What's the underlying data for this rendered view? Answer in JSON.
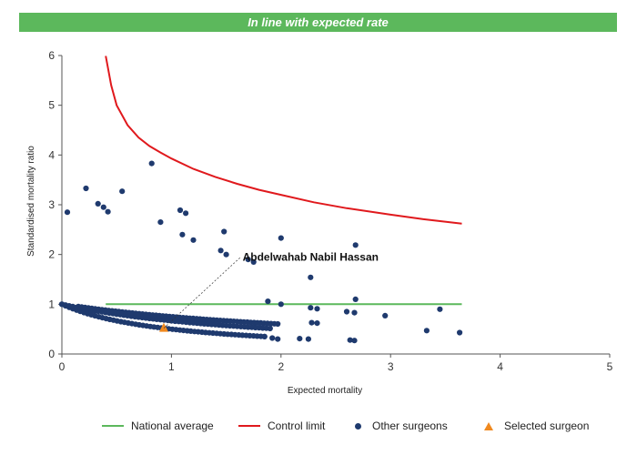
{
  "banner": {
    "text": "In line with expected rate",
    "color": "#5cb85c"
  },
  "chart_data": {
    "type": "scatter",
    "xlabel": "Expected mortality",
    "ylabel": "Standardised mortality ratio",
    "xlim": [
      0,
      5
    ],
    "ylim": [
      0,
      6
    ],
    "xticks": [
      "0",
      "1",
      "2",
      "3",
      "4",
      "5"
    ],
    "yticks": [
      "0",
      "1",
      "2",
      "3",
      "4",
      "5",
      "6"
    ],
    "grid": false,
    "legend_position": "bottom",
    "annotation": {
      "text": "Abdelwahab Nabil Hassan",
      "x": 1.55,
      "y": 1.95
    },
    "series": [
      {
        "name": "National average",
        "kind": "line",
        "color": "#5cb85c",
        "x": [
          0.4,
          3.65
        ],
        "y": [
          1.0,
          1.0
        ]
      },
      {
        "name": "Control limit",
        "kind": "line",
        "color": "#e0191d",
        "x": [
          0.4,
          0.45,
          0.5,
          0.6,
          0.7,
          0.8,
          0.9,
          1.0,
          1.2,
          1.4,
          1.6,
          1.8,
          2.0,
          2.3,
          2.6,
          3.0,
          3.3,
          3.65
        ],
        "y": [
          5.99,
          5.4,
          5.0,
          4.6,
          4.35,
          4.18,
          4.05,
          3.93,
          3.72,
          3.56,
          3.42,
          3.3,
          3.2,
          3.05,
          2.93,
          2.8,
          2.71,
          2.62
        ]
      },
      {
        "name": "Other surgeons",
        "kind": "points",
        "color": "#1f3a6e",
        "points": [
          [
            0.05,
            2.85
          ],
          [
            0.22,
            3.33
          ],
          [
            0.33,
            3.02
          ],
          [
            0.38,
            2.95
          ],
          [
            0.42,
            2.86
          ],
          [
            0.55,
            3.27
          ],
          [
            0.82,
            3.83
          ],
          [
            0.9,
            2.65
          ],
          [
            1.08,
            2.89
          ],
          [
            1.13,
            2.83
          ],
          [
            1.48,
            2.46
          ],
          [
            1.1,
            2.4
          ],
          [
            1.2,
            2.29
          ],
          [
            1.45,
            2.08
          ],
          [
            1.5,
            2.0
          ],
          [
            2.0,
            2.33
          ],
          [
            2.68,
            2.19
          ],
          [
            2.27,
            1.54
          ],
          [
            2.68,
            1.1
          ],
          [
            1.75,
            1.85
          ],
          [
            1.7,
            1.9
          ],
          [
            1.88,
            1.06
          ],
          [
            2.0,
            1.0
          ],
          [
            2.27,
            0.93
          ],
          [
            2.33,
            0.91
          ],
          [
            2.28,
            0.63
          ],
          [
            2.33,
            0.62
          ],
          [
            2.6,
            0.85
          ],
          [
            2.67,
            0.83
          ],
          [
            2.95,
            0.77
          ],
          [
            3.45,
            0.9
          ],
          [
            3.33,
            0.47
          ],
          [
            3.63,
            0.43
          ],
          [
            2.63,
            0.28
          ],
          [
            2.67,
            0.27
          ],
          [
            2.25,
            0.3
          ],
          [
            2.17,
            0.31
          ],
          [
            1.97,
            0.3
          ],
          [
            1.92,
            0.32
          ],
          [
            1.85,
            0.35
          ]
        ],
        "curves": [
          {
            "k": 1,
            "x_from": 0.0,
            "x_to": 1.85,
            "n": 56
          },
          {
            "k": 2,
            "x_from": 0.0,
            "x_to": 1.9,
            "n": 58
          },
          {
            "k": 3,
            "x_from": 0.15,
            "x_to": 1.97,
            "n": 60
          }
        ]
      },
      {
        "name": "Selected surgeon",
        "kind": "marker",
        "color": "#f0891f",
        "points": [
          [
            0.93,
            0.52
          ]
        ]
      }
    ]
  }
}
